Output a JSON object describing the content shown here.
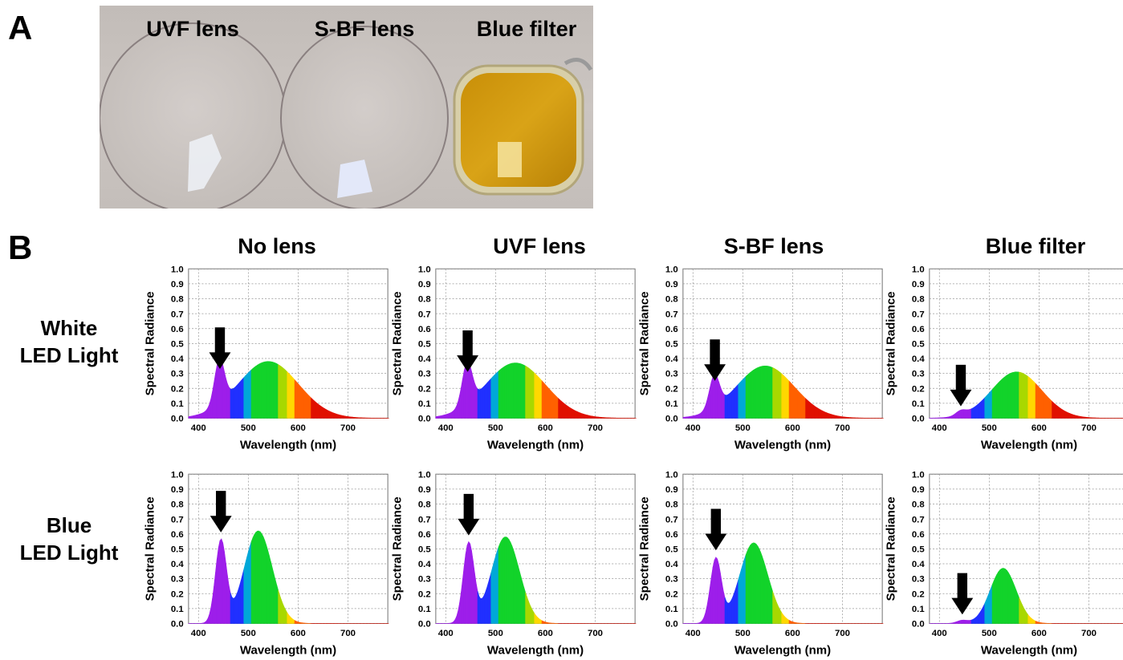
{
  "panels": {
    "a": "A",
    "b": "B"
  },
  "photo": {
    "labels": [
      "UVF lens",
      "S-BF lens",
      "Blue filter"
    ],
    "colors": {
      "background": "#c6c0bc",
      "filter": "#d2a012"
    }
  },
  "columns": [
    "No lens",
    "UVF lens",
    "S-BF lens",
    "Blue filter"
  ],
  "rows": [
    {
      "line1": "White",
      "line2": "LED Light"
    },
    {
      "line1": "Blue",
      "line2": "LED Light"
    }
  ],
  "chart_data": [
    {
      "type": "area",
      "row": 0,
      "col": 0,
      "xlabel": "Wavelength (nm)",
      "ylabel": "Spectral Radiance",
      "xlim": [
        380,
        780
      ],
      "ylim": [
        0,
        1.0
      ],
      "xticks": [
        400,
        500,
        600,
        700
      ],
      "yticks": [
        "0.0",
        "0.1",
        "0.2",
        "0.3",
        "0.4",
        "0.5",
        "0.6",
        "0.7",
        "0.8",
        "0.9",
        "1.0"
      ],
      "grid": true,
      "peaks": [
        {
          "mu": 442,
          "sigma": 10,
          "amp": 0.3
        },
        {
          "mu": 540,
          "sigma": 60,
          "amp": 0.38
        }
      ],
      "arrow_x": 443,
      "arrow_tip_y": 0.33
    },
    {
      "type": "area",
      "row": 0,
      "col": 1,
      "xlabel": "Wavelength (nm)",
      "ylabel": "Spectral Radiance",
      "xlim": [
        380,
        780
      ],
      "ylim": [
        0,
        1.0
      ],
      "xticks": [
        400,
        500,
        600,
        700
      ],
      "yticks": [
        "0.0",
        "0.1",
        "0.2",
        "0.3",
        "0.4",
        "0.5",
        "0.6",
        "0.7",
        "0.8",
        "0.9",
        "1.0"
      ],
      "grid": true,
      "peaks": [
        {
          "mu": 443,
          "sigma": 10,
          "amp": 0.28
        },
        {
          "mu": 540,
          "sigma": 60,
          "amp": 0.37
        }
      ],
      "arrow_x": 444,
      "arrow_tip_y": 0.31
    },
    {
      "type": "area",
      "row": 0,
      "col": 2,
      "xlabel": "Wavelength (nm)",
      "ylabel": "Spectral Radiance",
      "xlim": [
        380,
        780
      ],
      "ylim": [
        0,
        1.0
      ],
      "xticks": [
        400,
        500,
        600,
        700
      ],
      "yticks": [
        "0.0",
        "0.1",
        "0.2",
        "0.3",
        "0.4",
        "0.5",
        "0.6",
        "0.7",
        "0.8",
        "0.9",
        "1.0"
      ],
      "grid": true,
      "peaks": [
        {
          "mu": 443,
          "sigma": 10,
          "amp": 0.22
        },
        {
          "mu": 545,
          "sigma": 58,
          "amp": 0.35
        }
      ],
      "arrow_x": 444,
      "arrow_tip_y": 0.25
    },
    {
      "type": "area",
      "row": 0,
      "col": 3,
      "xlabel": "Wavelength (nm)",
      "ylabel": "Spectral Radiance",
      "xlim": [
        380,
        780
      ],
      "ylim": [
        0,
        1.0
      ],
      "xticks": [
        400,
        500,
        600,
        700
      ],
      "yticks": [
        "0.0",
        "0.1",
        "0.2",
        "0.3",
        "0.4",
        "0.5",
        "0.6",
        "0.7",
        "0.8",
        "0.9",
        "1.0"
      ],
      "grid": true,
      "peaks": [
        {
          "mu": 443,
          "sigma": 10,
          "amp": 0.03
        },
        {
          "mu": 555,
          "sigma": 50,
          "amp": 0.31
        }
      ],
      "arrow_x": 443,
      "arrow_tip_y": 0.08
    },
    {
      "type": "area",
      "row": 1,
      "col": 0,
      "xlabel": "Wavelength (nm)",
      "ylabel": "Spectral Radiance",
      "xlim": [
        380,
        780
      ],
      "ylim": [
        0,
        1.0
      ],
      "xticks": [
        400,
        500,
        600,
        700
      ],
      "yticks": [
        "0.0",
        "0.1",
        "0.2",
        "0.3",
        "0.4",
        "0.5",
        "0.6",
        "0.7",
        "0.8",
        "0.9",
        "1.0"
      ],
      "grid": true,
      "peaks": [
        {
          "mu": 445,
          "sigma": 11,
          "amp": 0.55
        },
        {
          "mu": 520,
          "sigma": 28,
          "amp": 0.62
        }
      ],
      "arrow_x": 445,
      "arrow_tip_y": 0.61
    },
    {
      "type": "area",
      "row": 1,
      "col": 1,
      "xlabel": "Wavelength (nm)",
      "ylabel": "Spectral Radiance",
      "xlim": [
        380,
        780
      ],
      "ylim": [
        0,
        1.0
      ],
      "xticks": [
        400,
        500,
        600,
        700
      ],
      "yticks": [
        "0.0",
        "0.1",
        "0.2",
        "0.3",
        "0.4",
        "0.5",
        "0.6",
        "0.7",
        "0.8",
        "0.9",
        "1.0"
      ],
      "grid": true,
      "peaks": [
        {
          "mu": 446,
          "sigma": 11,
          "amp": 0.53
        },
        {
          "mu": 520,
          "sigma": 28,
          "amp": 0.58
        }
      ],
      "arrow_x": 446,
      "arrow_tip_y": 0.59
    },
    {
      "type": "area",
      "row": 1,
      "col": 2,
      "xlabel": "Wavelength (nm)",
      "ylabel": "Spectral Radiance",
      "xlim": [
        380,
        780
      ],
      "ylim": [
        0,
        1.0
      ],
      "xticks": [
        400,
        500,
        600,
        700
      ],
      "yticks": [
        "0.0",
        "0.1",
        "0.2",
        "0.3",
        "0.4",
        "0.5",
        "0.6",
        "0.7",
        "0.8",
        "0.9",
        "1.0"
      ],
      "grid": true,
      "peaks": [
        {
          "mu": 446,
          "sigma": 11,
          "amp": 0.43
        },
        {
          "mu": 522,
          "sigma": 28,
          "amp": 0.54
        }
      ],
      "arrow_x": 446,
      "arrow_tip_y": 0.49
    },
    {
      "type": "area",
      "row": 1,
      "col": 3,
      "xlabel": "Wavelength (nm)",
      "ylabel": "Spectral Radiance",
      "xlim": [
        380,
        780
      ],
      "ylim": [
        0,
        1.0
      ],
      "xticks": [
        400,
        500,
        600,
        700
      ],
      "yticks": [
        "0.0",
        "0.1",
        "0.2",
        "0.3",
        "0.4",
        "0.5",
        "0.6",
        "0.7",
        "0.8",
        "0.9",
        "1.0"
      ],
      "grid": true,
      "peaks": [
        {
          "mu": 446,
          "sigma": 11,
          "amp": 0.02
        },
        {
          "mu": 528,
          "sigma": 26,
          "amp": 0.37
        }
      ],
      "arrow_x": 446,
      "arrow_tip_y": 0.06
    }
  ]
}
